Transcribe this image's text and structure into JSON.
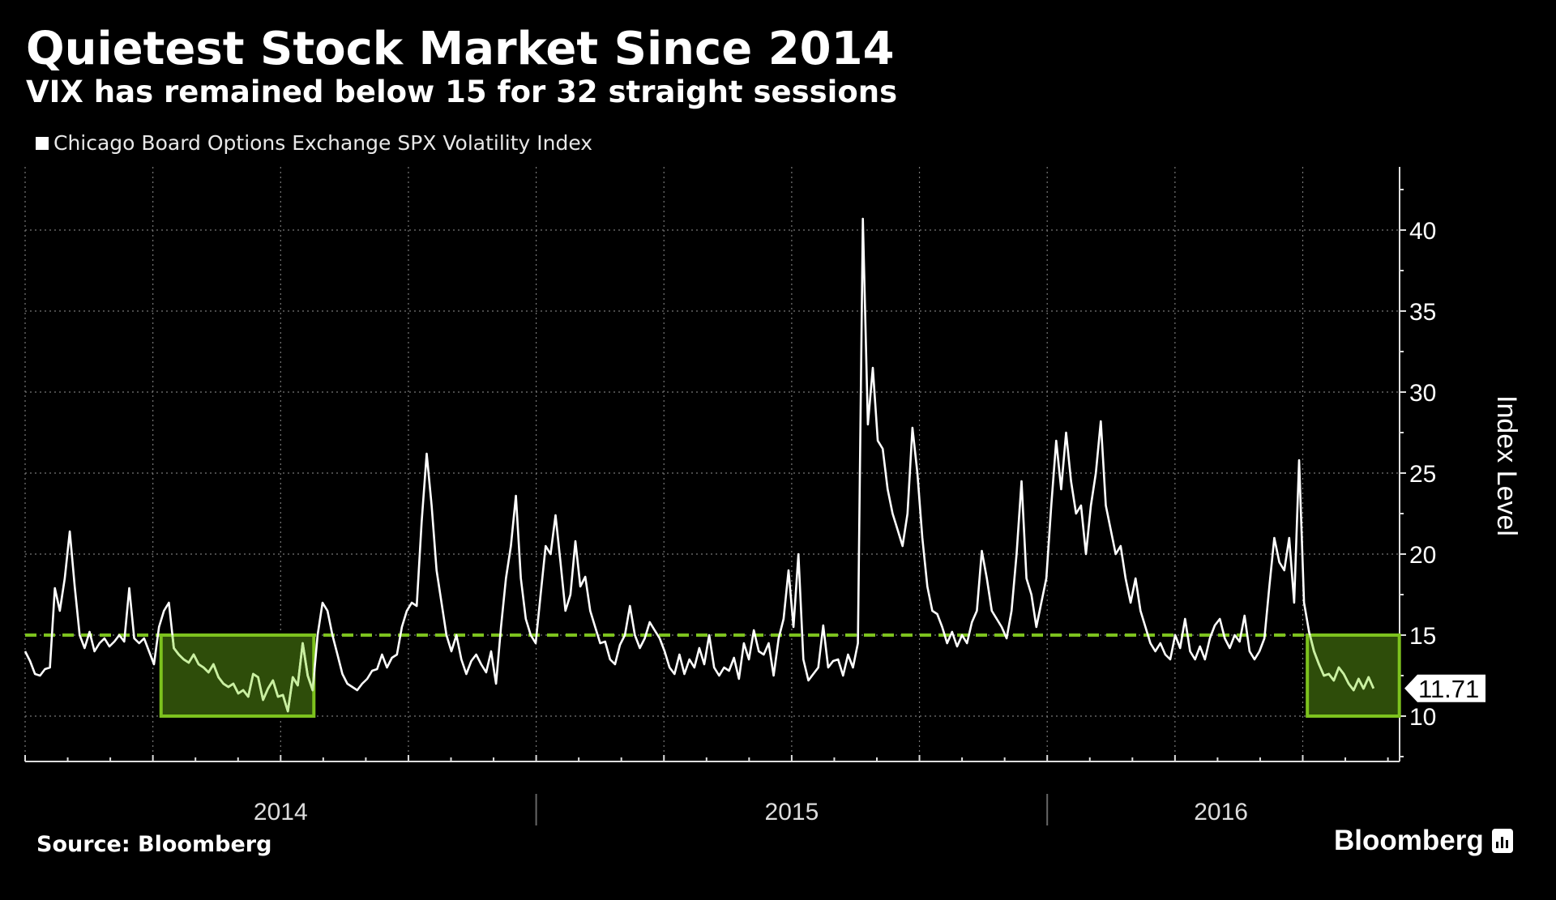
{
  "title": "Quietest Stock Market Since 2014",
  "subtitle": "VIX has remained below 15 for 32 straight sessions",
  "source": "Source: Bloomberg",
  "brand": "Bloomberg",
  "colors": {
    "background": "#000000",
    "line": "#ffffff",
    "highlight": "#7dc21e",
    "highlight_fill": "#2e4d0a",
    "highlight_line": "#c9f0a0"
  },
  "chart_data": {
    "type": "line",
    "title": "Quietest Stock Market Since 2014",
    "subtitle": "VIX has remained below 15 for 32 straight sessions",
    "legend": [
      "Chicago Board Options Exchange SPX Volatility Index"
    ],
    "legend_position": "top-left",
    "ylabel": "Index Level",
    "xlabel": "",
    "ylim": [
      7.2,
      43.9
    ],
    "yticks": [
      10,
      15,
      20,
      25,
      30,
      35,
      40
    ],
    "ytick_labels": [
      "10",
      "15",
      "20",
      "25",
      "30",
      "35",
      "40"
    ],
    "xlim": [
      2014.0,
      2016.69
    ],
    "xtick_labels": [
      {
        "label": "2014",
        "x": 2014.5
      },
      {
        "label": "2015",
        "x": 2015.5
      },
      {
        "label": "2016",
        "x": 2016.34
      }
    ],
    "grid": true,
    "x_start": 2014.0,
    "x_step_years": 0.0097,
    "series": [
      {
        "name": "Chicago Board Options Exchange SPX Volatility Index",
        "values": [
          14.0,
          13.4,
          12.6,
          12.5,
          12.9,
          13.0,
          17.9,
          16.5,
          18.5,
          21.4,
          18.0,
          15.0,
          14.2,
          15.2,
          14.0,
          14.5,
          14.8,
          14.3,
          14.6,
          15.0,
          14.6,
          17.9,
          14.8,
          14.5,
          14.8,
          14.0,
          13.2,
          15.5,
          16.5,
          17.0,
          14.2,
          13.8,
          13.5,
          13.3,
          13.8,
          13.2,
          13.0,
          12.7,
          13.2,
          12.4,
          12.0,
          11.8,
          12.0,
          11.4,
          11.6,
          11.2,
          12.6,
          12.4,
          11.0,
          11.7,
          12.2,
          11.2,
          11.3,
          10.3,
          12.4,
          11.9,
          14.5,
          12.5,
          11.6,
          15.0,
          17.0,
          16.5,
          15.0,
          13.8,
          12.6,
          12.0,
          11.8,
          11.6,
          12.0,
          12.3,
          12.8,
          12.9,
          13.8,
          13.0,
          13.6,
          13.8,
          15.5,
          16.5,
          17.0,
          16.8,
          22.0,
          26.2,
          23.0,
          19.0,
          17.0,
          15.0,
          14.0,
          15.0,
          13.5,
          12.6,
          13.4,
          13.8,
          13.2,
          12.7,
          14.0,
          12.0,
          15.5,
          18.5,
          20.5,
          23.6,
          18.5,
          16.0,
          15.0,
          14.5,
          17.5,
          20.5,
          20.0,
          22.4,
          19.5,
          16.5,
          17.5,
          20.8,
          18.0,
          18.6,
          16.5,
          15.5,
          14.5,
          14.6,
          13.5,
          13.2,
          14.4,
          15.0,
          16.8,
          15.0,
          14.2,
          14.8,
          15.8,
          15.3,
          14.8,
          14.0,
          13.0,
          12.6,
          13.8,
          12.6,
          13.5,
          13.0,
          14.2,
          13.2,
          15.0,
          13.0,
          12.5,
          13.0,
          12.8,
          13.6,
          12.3,
          14.5,
          13.5,
          15.3,
          14.0,
          13.8,
          14.5,
          12.5,
          14.8,
          16.0,
          19.0,
          15.5,
          20.0,
          13.5,
          12.2,
          12.6,
          13.0,
          15.6,
          13.0,
          13.4,
          13.5,
          12.5,
          13.8,
          13.0,
          14.5,
          40.7,
          28.0,
          31.5,
          27.0,
          26.5,
          24.0,
          22.5,
          21.5,
          20.5,
          22.5,
          27.8,
          25.0,
          21.0,
          18.0,
          16.5,
          16.3,
          15.5,
          14.5,
          15.2,
          14.3,
          15.0,
          14.5,
          15.8,
          16.5,
          20.2,
          18.5,
          16.5,
          16.0,
          15.5,
          14.8,
          16.5,
          20.0,
          24.5,
          18.5,
          17.5,
          15.5,
          17.0,
          18.5,
          23.0,
          27.0,
          24.0,
          27.5,
          24.5,
          22.5,
          23.0,
          20.0,
          23.0,
          25.0,
          28.2,
          23.0,
          21.5,
          20.0,
          20.5,
          18.5,
          17.0,
          18.5,
          16.5,
          15.5,
          14.5,
          14.0,
          14.5,
          13.8,
          13.5,
          15.0,
          14.2,
          16.0,
          14.0,
          13.5,
          14.3,
          13.5,
          14.8,
          15.6,
          16.0,
          14.8,
          14.2,
          15.0,
          14.6,
          16.2,
          14.0,
          13.5,
          14.0,
          14.8,
          18.0,
          21.0,
          19.5,
          19.0,
          21.0,
          17.0,
          25.8,
          17.0,
          15.2,
          14.0,
          13.2,
          12.5,
          12.6,
          12.2,
          13.0,
          12.6,
          12.0,
          11.6,
          12.3,
          11.7,
          12.4,
          11.71
        ]
      }
    ],
    "reference_line": {
      "y": 15,
      "style": "dashed"
    },
    "highlights": [
      {
        "x0": 2014.266,
        "x1": 2014.565,
        "y0": 10,
        "y1": 15
      },
      {
        "x0": 2016.509,
        "x1": 2016.689,
        "y0": 10,
        "y1": 15
      }
    ],
    "last_value_label": "11.71"
  }
}
